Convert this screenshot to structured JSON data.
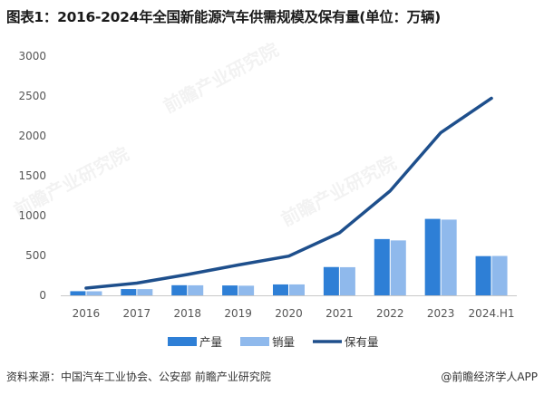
{
  "title": "图表1：2016-2024年全国新能源汽车供需规模及保有量(单位：万辆)",
  "source": "资料来源：中国汽车工业协会、公安部 前瞻产业研究院",
  "brand": "@前瞻经济学人APP",
  "watermark": "前瞻产业研究院",
  "colors": {
    "production": "#2e7fd6",
    "sales": "#8fb9ec",
    "ownership": "#1e4f8c"
  },
  "chart_data": {
    "type": "bar",
    "categories": [
      "2016",
      "2017",
      "2018",
      "2019",
      "2020",
      "2021",
      "2022",
      "2023",
      "2024.H1"
    ],
    "series": [
      {
        "name": "产量",
        "type": "bar",
        "values": [
          52,
          79,
          127,
          124,
          137,
          355,
          706,
          959,
          492
        ]
      },
      {
        "name": "销量",
        "type": "bar",
        "values": [
          51,
          78,
          126,
          121,
          137,
          353,
          689,
          950,
          494
        ]
      },
      {
        "name": "保有量",
        "type": "line",
        "values": [
          91,
          153,
          261,
          381,
          492,
          784,
          1310,
          2041,
          2472
        ]
      }
    ],
    "ylim": [
      0,
      3000
    ],
    "yticks": [
      0,
      500,
      1000,
      1500,
      2000,
      2500,
      3000
    ],
    "grid": false,
    "legend": "bottom"
  }
}
